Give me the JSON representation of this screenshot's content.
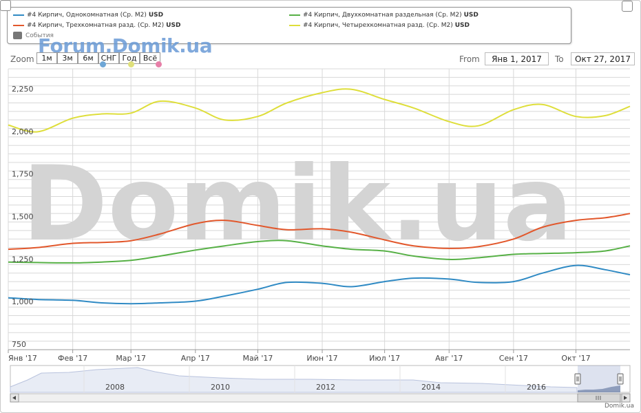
{
  "legend": {
    "items": [
      {
        "label": "#4 Кирпич, Однокомнатная (Ср. М2)",
        "unit": "USD",
        "color": "#2f8ac4"
      },
      {
        "label": "#4 Кирпич, Трехкомнатная разд. (Ср. М2)",
        "unit": "USD",
        "color": "#e2572b"
      },
      {
        "label": "#4 Кирпич, Двухкомнатная раздельная (Ср. М2)",
        "unit": "USD",
        "color": "#56b045"
      },
      {
        "label": "#4 Кирпич, Четырехкомнатная разд. (Ср. М2)",
        "unit": "USD",
        "color": "#dede3a"
      }
    ],
    "events_label": "События"
  },
  "watermark_top": "Forum.Domik.ua",
  "watermark_center": "Domik.ua",
  "footer": "Domik.ua",
  "range_selector": {
    "zoom_label": "Zoom",
    "buttons": [
      "1м",
      "3м",
      "6м",
      "СНГ",
      "Год",
      "Всё"
    ],
    "from_label": "From",
    "from_value": "Янв 1, 2017",
    "to_label": "To",
    "to_value": "Окт 27, 2017"
  },
  "navigator": {
    "years": [
      "2008",
      "2010",
      "2012",
      "2014",
      "2016"
    ]
  },
  "chart_data": {
    "type": "line",
    "title": "",
    "xlabel": "",
    "ylabel": "",
    "ylim": [
      750,
      2400
    ],
    "yticks": [
      750,
      1000,
      1250,
      1500,
      1750,
      2000,
      2250
    ],
    "ytick_labels": [
      "750",
      "1,000",
      "1,250",
      "1,500",
      "1,750",
      "2,000",
      "2,250"
    ],
    "xlim": [
      "2017-01-01",
      "2017-10-27"
    ],
    "xticks": [
      "2017-01-01",
      "2017-02-01",
      "2017-03-01",
      "2017-04-01",
      "2017-05-01",
      "2017-06-01",
      "2017-07-01",
      "2017-08-01",
      "2017-09-01",
      "2017-10-01"
    ],
    "xtick_labels": [
      "Янв '17",
      "Фев '17",
      "Мар '17",
      "Апр '17",
      "Май '17",
      "Июн '17",
      "Июл '17",
      "Авг '17",
      "Сен '17",
      "Окт '17"
    ],
    "grid": true,
    "x": [
      "2017-01-01",
      "2017-01-15",
      "2017-02-01",
      "2017-02-15",
      "2017-03-01",
      "2017-03-15",
      "2017-04-01",
      "2017-04-15",
      "2017-05-01",
      "2017-05-15",
      "2017-06-01",
      "2017-06-15",
      "2017-07-01",
      "2017-07-15",
      "2017-08-01",
      "2017-08-15",
      "2017-09-01",
      "2017-09-15",
      "2017-10-01",
      "2017-10-15",
      "2017-10-27"
    ],
    "series": [
      {
        "name": "#4 Кирпич, Однокомнатная (Ср. М2)",
        "color": "#2f8ac4",
        "values": [
          1055,
          1045,
          1040,
          1025,
          1020,
          1025,
          1035,
          1065,
          1105,
          1145,
          1140,
          1120,
          1150,
          1170,
          1165,
          1145,
          1150,
          1200,
          1245,
          1220,
          1190
        ]
      },
      {
        "name": "#4 Кирпич, Двухкомнатная раздельная (Ср. М2)",
        "color": "#56b045",
        "values": [
          1265,
          1262,
          1260,
          1265,
          1275,
          1300,
          1335,
          1360,
          1385,
          1390,
          1360,
          1340,
          1330,
          1300,
          1280,
          1290,
          1310,
          1315,
          1320,
          1330,
          1360
        ]
      },
      {
        "name": "#4 Кирпич, Трехкомнатная разд. (Ср. М2)",
        "color": "#e2572b",
        "values": [
          1340,
          1350,
          1375,
          1380,
          1390,
          1430,
          1490,
          1510,
          1480,
          1455,
          1460,
          1440,
          1395,
          1360,
          1345,
          1355,
          1400,
          1470,
          1510,
          1525,
          1550
        ]
      },
      {
        "name": "#4 Кирпич, Четырехкомнатная разд. (Ср. М2)",
        "color": "#dede3a",
        "values": [
          2070,
          2030,
          2110,
          2135,
          2140,
          2210,
          2170,
          2100,
          2120,
          2200,
          2260,
          2280,
          2220,
          2170,
          2090,
          2065,
          2160,
          2190,
          2120,
          2125,
          2180
        ]
      }
    ]
  }
}
